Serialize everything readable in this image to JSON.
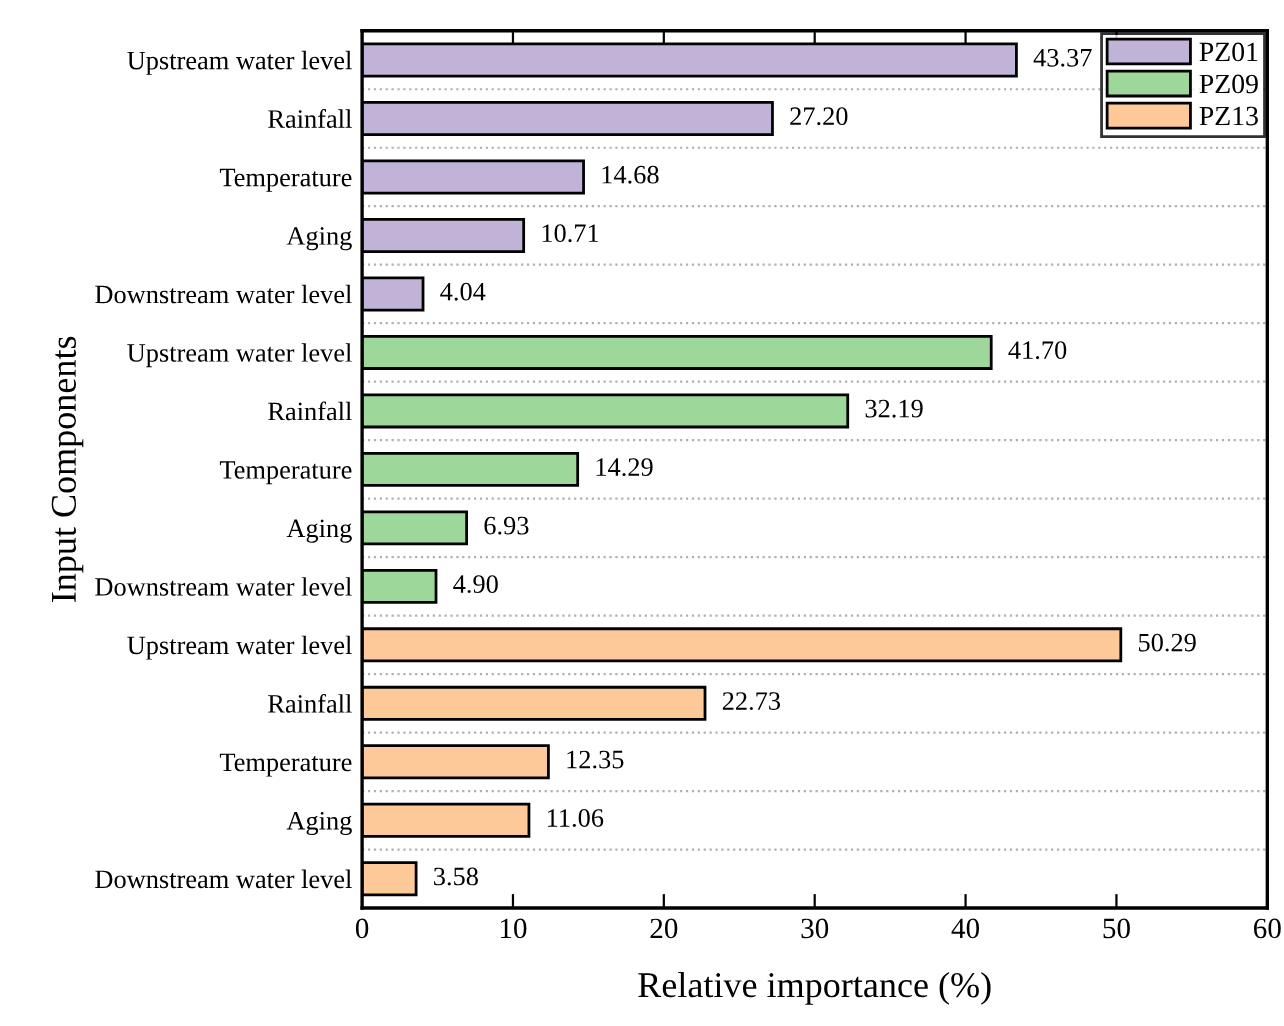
{
  "chart_data": {
    "type": "bar",
    "orientation": "horizontal",
    "xlabel": "Relative importance (%)",
    "ylabel": "Input Components",
    "categories": [
      "Upstream water level",
      "Rainfall",
      "Temperature",
      "Aging",
      "Downstream water level",
      "Upstream water level",
      "Rainfall",
      "Temperature",
      "Aging",
      "Downstream water level",
      "Upstream water level",
      "Rainfall",
      "Temperature",
      "Aging",
      "Downstream water level"
    ],
    "series": [
      {
        "name": "PZ01",
        "color": "#c1b3d7",
        "values": [
          43.37,
          27.2,
          14.68,
          10.71,
          4.04,
          null,
          null,
          null,
          null,
          null,
          null,
          null,
          null,
          null,
          null
        ],
        "value_labels": [
          "43.37",
          "27.20",
          "14.68",
          "10.71",
          "4.04",
          null,
          null,
          null,
          null,
          null,
          null,
          null,
          null,
          null,
          null
        ]
      },
      {
        "name": "PZ09",
        "color": "#9dd79a",
        "values": [
          null,
          null,
          null,
          null,
          null,
          41.7,
          32.19,
          14.29,
          6.93,
          4.9,
          null,
          null,
          null,
          null,
          null
        ],
        "value_labels": [
          null,
          null,
          null,
          null,
          null,
          "41.70",
          "32.19",
          "14.29",
          "6.93",
          "4.90",
          null,
          null,
          null,
          null,
          null
        ]
      },
      {
        "name": "PZ13",
        "color": "#fdc998",
        "values": [
          null,
          null,
          null,
          null,
          null,
          null,
          null,
          null,
          null,
          null,
          50.29,
          22.73,
          12.35,
          11.06,
          3.58
        ],
        "value_labels": [
          null,
          null,
          null,
          null,
          null,
          null,
          null,
          null,
          null,
          null,
          "50.29",
          "22.73",
          "12.35",
          "11.06",
          "3.58"
        ]
      }
    ],
    "xlim": [
      0,
      60
    ],
    "xticks": [
      0,
      10,
      20,
      30,
      40,
      50,
      60
    ],
    "grid": "y",
    "legend": "top right"
  }
}
